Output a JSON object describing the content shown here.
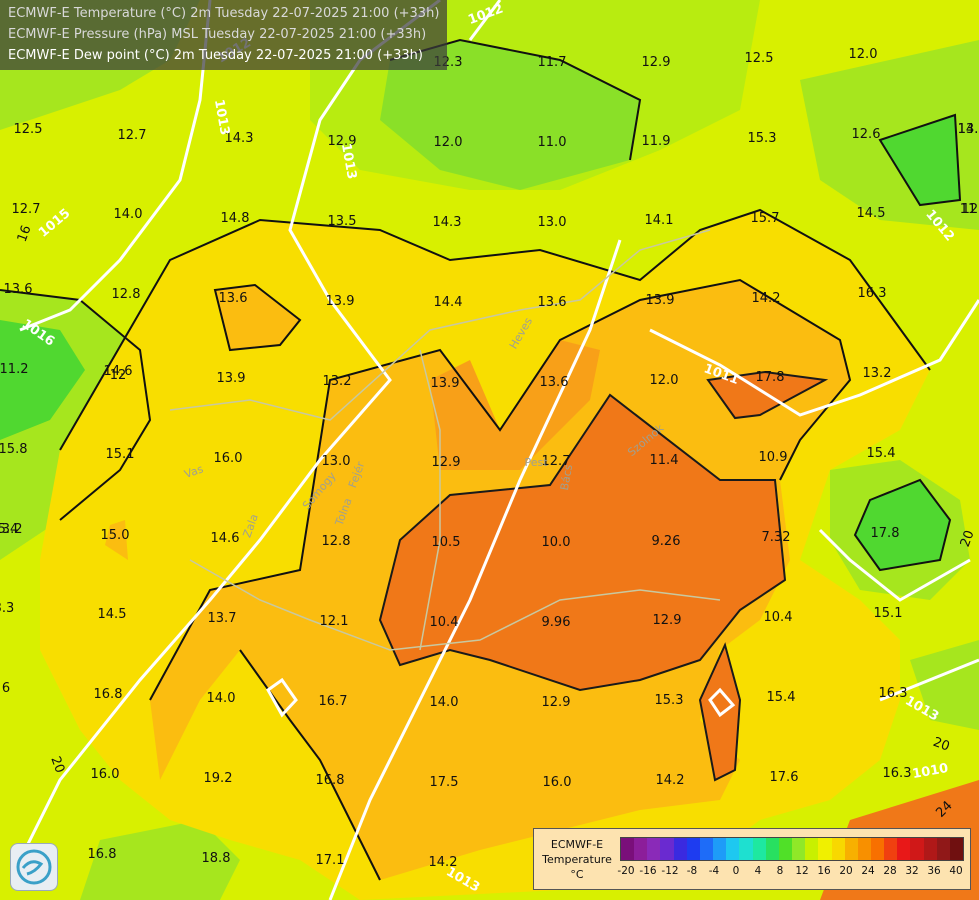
{
  "header": {
    "line1": "ECMWF-E Temperature (°C) 2m Tuesday 22-07-2025 21:00 (+33h)",
    "line2": "ECMWF-E Pressure (hPa) MSL Tuesday 22-07-2025 21:00 (+33h)",
    "line3": "ECMWF-E Dew point (°C) 2m Tuesday 22-07-2025 21:00 (+33h)"
  },
  "legend": {
    "title_line1": "ECMWF-E",
    "title_line2": "Temperature",
    "title_line3": "°C",
    "ticks": [
      "-20",
      "-16",
      "-12",
      "-8",
      "-4",
      "0",
      "4",
      "8",
      "12",
      "16",
      "20",
      "24",
      "28",
      "32",
      "36",
      "40"
    ],
    "colors": [
      "#7a0f7a",
      "#8c1e9a",
      "#8a2ab8",
      "#6a2ad0",
      "#3a2ae0",
      "#1e3cf0",
      "#1e6cf8",
      "#1e9cf8",
      "#1ec8f0",
      "#1ee0d0",
      "#1ee8a0",
      "#28e060",
      "#50e028",
      "#90e828",
      "#c8f000",
      "#f0f000",
      "#f8d800",
      "#f8b000",
      "#f89000",
      "#f87000",
      "#f04010",
      "#e81818",
      "#d01818",
      "#b01818",
      "#901818",
      "#701010"
    ]
  },
  "pressure_labels": [
    "1012",
    "1013",
    "1013",
    "1012",
    "1015",
    "1016",
    "1011",
    "1013",
    "1010",
    "1013",
    "1012"
  ],
  "temperature_labels": [
    "12.3",
    "11.7",
    "12.9",
    "12.5",
    "12.0",
    "12.5",
    "12.7",
    "14.3",
    "12.9",
    "12.0",
    "11.0",
    "11.9",
    "15.3",
    "12.6",
    "12.7",
    "14.0",
    "14.8",
    "13.5",
    "14.3",
    "13.0",
    "14.1",
    "15.7",
    "14.5",
    "13.6",
    "12.8",
    "13.6",
    "13.9",
    "14.4",
    "13.6",
    "13.9",
    "14.2",
    "16.3",
    "11.2",
    "14.6",
    "13.9",
    "13.2",
    "13.9",
    "13.6",
    "12.0",
    "17.8",
    "13.2",
    "15.8",
    "15.1",
    "16.0",
    "13.0",
    "12.9",
    "12.7",
    "11.4",
    "10.9",
    "15.4",
    "13.2",
    "15.0",
    "14.6",
    "12.8",
    "10.5",
    "10.0",
    "9.26",
    "7.32",
    "17.8",
    "14.5",
    "13.7",
    "12.1",
    "10.4",
    "9.96",
    "12.9",
    "10.4",
    "15.1",
    "16.8",
    "14.0",
    "16.7",
    "14.0",
    "12.9",
    "15.3",
    "15.4",
    "16.3",
    "16.0",
    "19.2",
    "16.8",
    "17.5",
    "16.0",
    "14.2",
    "17.6",
    "16.3",
    "16.8",
    "18.8",
    "17.1",
    "14.2",
    "14.",
    "12.",
    "12",
    "11",
    "13.",
    "5.4",
    "3.3",
    "6"
  ],
  "dew_isoline_labels": [
    "16",
    "20",
    "20",
    "24",
    "20"
  ],
  "place_labels": [
    "Vas",
    "Zala",
    "Somogy",
    "Tolna",
    "Fejér",
    "Heves",
    "Pest",
    "Bács",
    "Szolnok"
  ]
}
